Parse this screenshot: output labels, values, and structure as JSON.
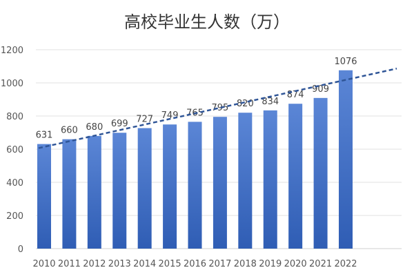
{
  "chart_data": {
    "type": "bar",
    "title": "高校毕业生人数（万）",
    "xlabel": "",
    "ylabel": "",
    "categories": [
      "2010",
      "2011",
      "2012",
      "2013",
      "2014",
      "2015",
      "2016",
      "2017",
      "2018",
      "2019",
      "2020",
      "2021",
      "2022"
    ],
    "values": [
      631,
      660,
      680,
      699,
      727,
      749,
      765,
      795,
      820,
      834,
      874,
      909,
      1076
    ],
    "data_labels": [
      "631",
      "660",
      "680",
      "699",
      "727",
      "749",
      "765",
      "795",
      "820",
      "834",
      "874",
      "909",
      "1076"
    ],
    "ylim": [
      0,
      1200
    ],
    "y_ticks": [
      0,
      200,
      400,
      600,
      800,
      1000,
      1200
    ],
    "grid": true,
    "legend": "none",
    "trendline": {
      "type": "linear",
      "style": "dashed",
      "start": 614,
      "end": 1018
    },
    "colors": {
      "bar_top": "#5b86d6",
      "bar_bottom": "#2f5db4",
      "trendline": "#2f5597",
      "title": "#333333"
    }
  }
}
